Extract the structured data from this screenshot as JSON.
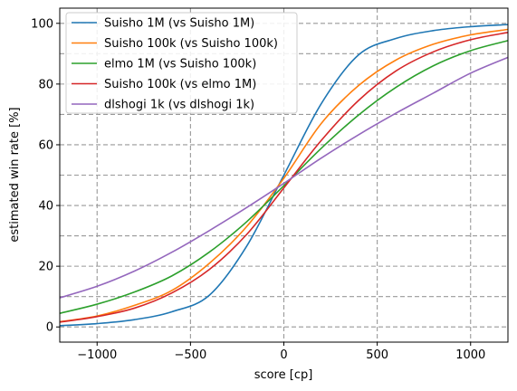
{
  "chart_data": {
    "type": "line",
    "title": "",
    "xlabel": "score [cp]",
    "ylabel": "estimated win rate [%]",
    "xlim": [
      -1200,
      1200
    ],
    "ylim": [
      -5,
      105
    ],
    "x_ticks": [
      -1000,
      -500,
      0,
      500,
      1000
    ],
    "x_tick_labels": [
      "−1000",
      "−500",
      "0",
      "500",
      "1000"
    ],
    "y_ticks": [
      0,
      20,
      40,
      60,
      80,
      100
    ],
    "y_tick_labels": [
      "0",
      "20",
      "40",
      "60",
      "80",
      "100"
    ],
    "x_grid": [
      -1000,
      -500,
      0,
      500,
      1000
    ],
    "y_grid": [
      0,
      10,
      20,
      30,
      40,
      50,
      60,
      70,
      80,
      90,
      100
    ],
    "grid": true,
    "legend_position": "top-left",
    "x": [
      -1200,
      -1000,
      -800,
      -600,
      -400,
      -200,
      0,
      200,
      400,
      600,
      800,
      1000,
      1200
    ],
    "series": [
      {
        "name": "Suisho 1M (vs Suisho 1M)",
        "color": "#1f77b4",
        "values": [
          0.4,
          1.1,
          2.4,
          5.0,
          10.4,
          26.5,
          50.0,
          73.5,
          89.6,
          95.0,
          97.6,
          98.9,
          99.6
        ]
      },
      {
        "name": "Suisho 100k (vs Suisho 100k)",
        "color": "#ff7f0e",
        "values": [
          1.7,
          3.6,
          7.1,
          12.0,
          20.9,
          33.0,
          49.0,
          67.0,
          79.5,
          87.9,
          93.1,
          96.2,
          98.0
        ]
      },
      {
        "name": "elmo 1M (vs Suisho 100k)",
        "color": "#2ca02c",
        "values": [
          4.5,
          7.5,
          11.5,
          16.8,
          24.6,
          34.6,
          46.5,
          58.8,
          69.8,
          78.9,
          86.0,
          91.0,
          94.3
        ]
      },
      {
        "name": "Suisho 100k (vs elmo 1M)",
        "color": "#d62728",
        "values": [
          1.6,
          3.4,
          6.2,
          11.2,
          18.9,
          30.4,
          45.8,
          61.4,
          74.6,
          84.3,
          90.6,
          94.6,
          97.0
        ]
      },
      {
        "name": "dlshogi 1k (vs dlshogi 1k)",
        "color": "#9467bd",
        "values": [
          9.6,
          13.4,
          18.4,
          24.6,
          31.7,
          39.3,
          47.3,
          55.6,
          63.3,
          70.4,
          77.0,
          83.6,
          88.8
        ]
      }
    ]
  }
}
